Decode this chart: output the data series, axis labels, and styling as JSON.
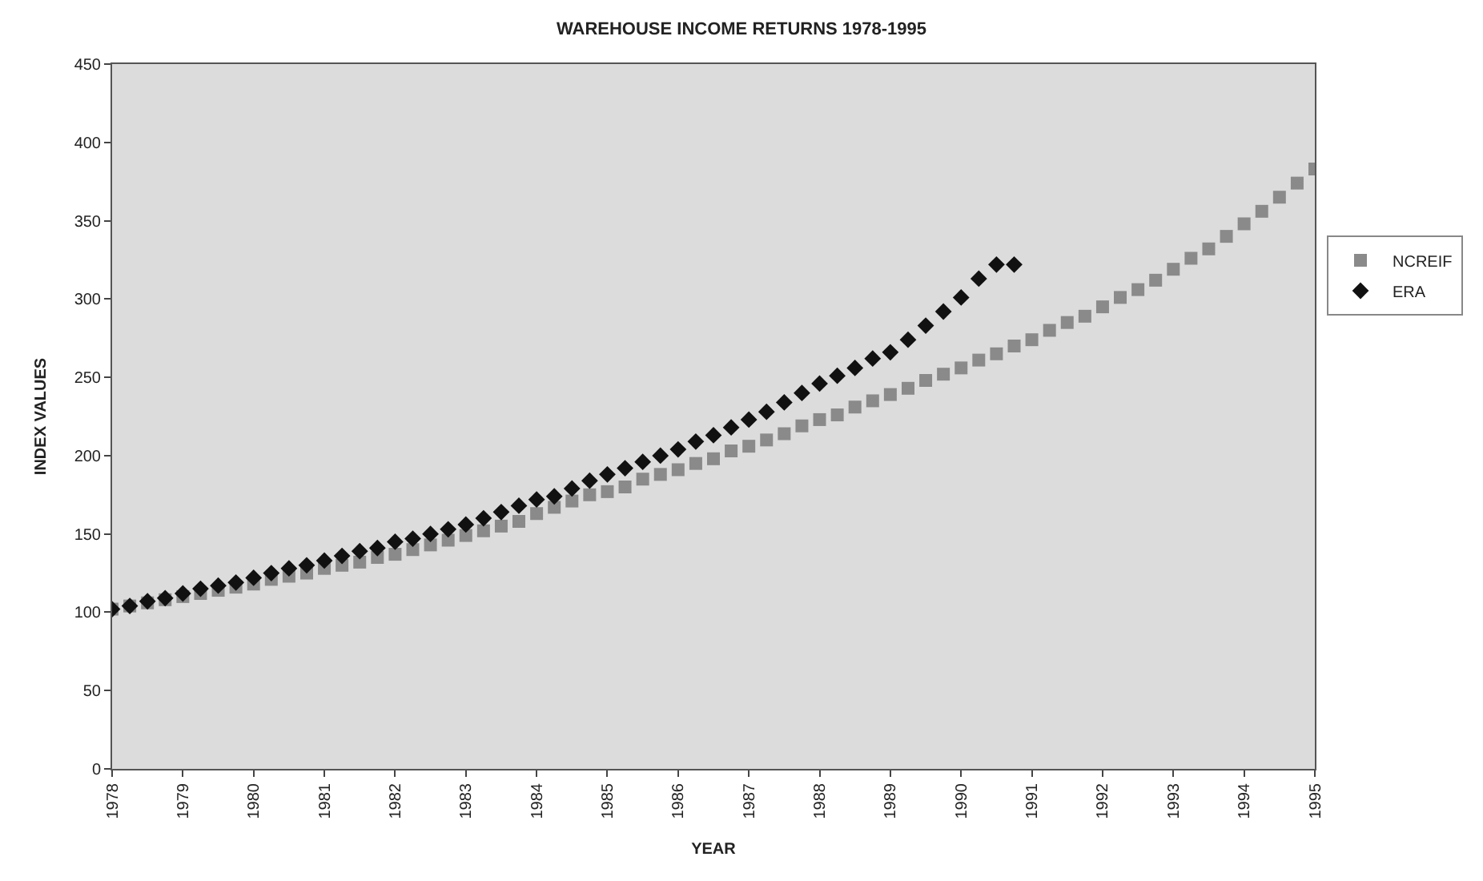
{
  "chart_data": {
    "type": "scatter",
    "title": "WAREHOUSE INCOME RETURNS 1978-1995",
    "xlabel": "YEAR",
    "ylabel": "INDEX VALUES",
    "xlim": [
      1978,
      1995
    ],
    "xticks": [
      1978,
      1979,
      1980,
      1981,
      1982,
      1983,
      1984,
      1985,
      1986,
      1987,
      1988,
      1989,
      1990,
      1991,
      1992,
      1993,
      1994,
      1995
    ],
    "ylim": [
      0,
      450
    ],
    "yticks": [
      0,
      50,
      100,
      150,
      200,
      250,
      300,
      350,
      400,
      450
    ],
    "grid": false,
    "legend": "right",
    "series": [
      {
        "name": "NCREIF",
        "color": "#8a8a8a",
        "marker": "square",
        "x": [
          1978,
          1978.25,
          1978.5,
          1978.75,
          1979,
          1979.25,
          1979.5,
          1979.75,
          1980,
          1980.25,
          1980.5,
          1980.75,
          1981,
          1981.25,
          1981.5,
          1981.75,
          1982,
          1982.25,
          1982.5,
          1982.75,
          1983,
          1983.25,
          1983.5,
          1983.75,
          1984,
          1984.25,
          1984.5,
          1984.75,
          1985,
          1985.25,
          1985.5,
          1985.75,
          1986,
          1986.25,
          1986.5,
          1986.75,
          1987,
          1987.25,
          1987.5,
          1987.75,
          1988,
          1988.25,
          1988.5,
          1988.75,
          1989,
          1989.25,
          1989.5,
          1989.75,
          1990,
          1990.25,
          1990.5,
          1990.75,
          1991,
          1991.25,
          1991.5,
          1991.75,
          1992,
          1992.25,
          1992.5,
          1992.75,
          1993,
          1993.25,
          1993.5,
          1993.75,
          1994,
          1994.25,
          1994.5,
          1994.75,
          1995
        ],
        "values": [
          102,
          104,
          106,
          108,
          110,
          112,
          114,
          116,
          118,
          121,
          123,
          125,
          128,
          130,
          132,
          135,
          137,
          140,
          143,
          146,
          149,
          152,
          155,
          158,
          163,
          167,
          171,
          175,
          177,
          180,
          185,
          188,
          191,
          195,
          198,
          203,
          206,
          210,
          214,
          219,
          223,
          226,
          231,
          235,
          239,
          243,
          248,
          252,
          256,
          261,
          265,
          270,
          274,
          280,
          285,
          289,
          295,
          301,
          306,
          312,
          319,
          326,
          332,
          340,
          348,
          356,
          365,
          374,
          383
        ]
      },
      {
        "name": "ERA",
        "color": "#111111",
        "marker": "diamond",
        "x": [
          1978,
          1978.25,
          1978.5,
          1978.75,
          1979,
          1979.25,
          1979.5,
          1979.75,
          1980,
          1980.25,
          1980.5,
          1980.75,
          1981,
          1981.25,
          1981.5,
          1981.75,
          1982,
          1982.25,
          1982.5,
          1982.75,
          1983,
          1983.25,
          1983.5,
          1983.75,
          1984,
          1984.25,
          1984.5,
          1984.75,
          1985,
          1985.25,
          1985.5,
          1985.75,
          1986,
          1986.25,
          1986.5,
          1986.75,
          1987,
          1987.25,
          1987.5,
          1987.75,
          1988,
          1988.25,
          1988.5,
          1988.75,
          1989,
          1989.25,
          1989.5,
          1989.75,
          1990,
          1990.25,
          1990.5,
          1990.75
        ],
        "values": [
          102,
          104,
          107,
          109,
          112,
          115,
          117,
          119,
          122,
          125,
          128,
          130,
          133,
          136,
          139,
          141,
          145,
          147,
          150,
          153,
          156,
          160,
          164,
          168,
          172,
          174,
          179,
          184,
          188,
          192,
          196,
          200,
          204,
          209,
          213,
          218,
          223,
          228,
          234,
          240,
          246,
          251,
          256,
          262,
          266,
          274,
          283,
          292,
          301,
          313,
          322,
          322
        ]
      }
    ]
  }
}
